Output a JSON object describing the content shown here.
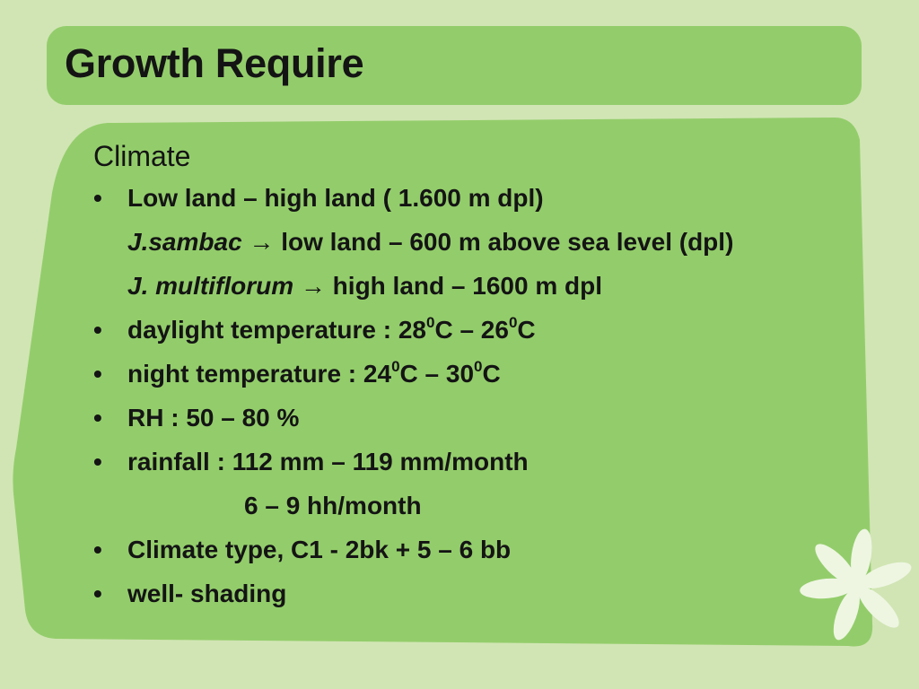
{
  "slide": {
    "title": "Growth Require",
    "heading": "Climate",
    "items": {
      "b1": "Low land – high land ( 1.600 m dpl)",
      "s1_species": "J.sambac",
      "s1_arrow": "→",
      "s1_text": " low land – 600 m above sea level (dpl)",
      "s2_species": "J. multiflorum",
      "s2_arrow": "→",
      "s2_text": " high land – 1600 m dpl",
      "b2_a": "daylight temperature : 28",
      "b2_sup1": "0",
      "b2_b": "C – 26",
      "b2_sup2": "0",
      "b2_c": "C",
      "b3_a": "night temperature : 24",
      "b3_sup1": "0",
      "b3_b": "C – 30",
      "b3_sup2": "0",
      "b3_c": "C",
      "b4": "RH : 50 – 80 %",
      "b5": "rainfall : 112 mm – 119 mm/month",
      "b5_cont": "6 – 9 hh/month",
      "b6": "Climate type, C1  - 2bk  + 5 – 6 bb",
      "b7": "well- shading"
    },
    "bullet": "•",
    "colors": {
      "background": "#d1e5b4",
      "panel": "#93cd6b",
      "text": "#141414",
      "flower": "#eef6e2"
    },
    "decoration_icon": "flower-icon"
  }
}
